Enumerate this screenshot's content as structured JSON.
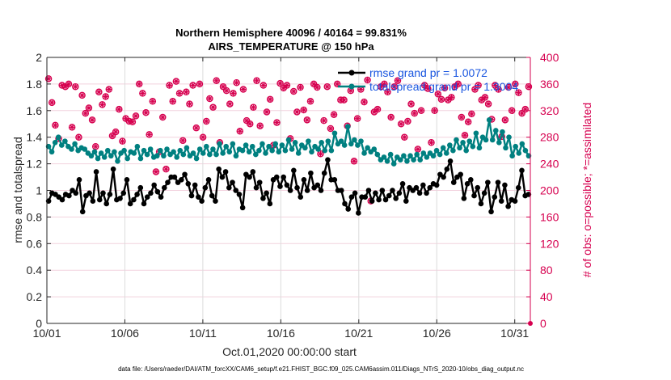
{
  "chart_data": {
    "type": "line",
    "title": "Northern Hemisphere 40096 / 40164 = 99.831%",
    "subtitle": "AIRS_TEMPERATURE @ 150 hPa",
    "xlabel": "Oct.01,2020 00:00:00 start",
    "ylabel": "rmse and totalspread",
    "ylabel_right": "# of obs: o=possible; *=assimilated",
    "footer": "data file: /Users/raeder/DAI/ATM_forcXX/CAM6_setup/f.e21.FHIST_BGC.f09_025.CAM6assim.011/Diags_NTrS_2020-10/obs_diag_output.nc",
    "xlim_days": [
      0,
      31
    ],
    "x_ticks": [
      {
        "day": 0,
        "label": "10/01"
      },
      {
        "day": 5,
        "label": "10/06"
      },
      {
        "day": 10,
        "label": "10/11"
      },
      {
        "day": 15,
        "label": "10/16"
      },
      {
        "day": 20,
        "label": "10/21"
      },
      {
        "day": 25,
        "label": "10/26"
      },
      {
        "day": 30,
        "label": "10/31"
      }
    ],
    "ylim": [
      0,
      2
    ],
    "y_ticks": [
      "0",
      "0.2",
      "0.4",
      "0.6",
      "0.8",
      "1",
      "1.2",
      "1.4",
      "1.6",
      "1.8",
      "2"
    ],
    "ylim_right": [
      0,
      400
    ],
    "y_ticks_right": [
      "0",
      "40",
      "80",
      "120",
      "160",
      "200",
      "240",
      "280",
      "320",
      "360",
      "400"
    ],
    "grid": true,
    "legend_position": "top-right",
    "colors": {
      "rmse": "#000000",
      "totalspread": "#008080",
      "obs": "#d6004f",
      "legend_text": "#1a56e0",
      "right_axis": "#d6004f"
    },
    "series": [
      {
        "name": "rmse grand pr = 1.0072",
        "axis": "left",
        "values": [
          0.92,
          0.98,
          0.97,
          0.95,
          0.93,
          0.97,
          0.96,
          1.0,
          0.98,
          1.08,
          0.84,
          0.96,
          0.98,
          0.92,
          1.14,
          0.93,
          0.98,
          0.9,
          0.97,
          1.16,
          0.93,
          0.94,
          0.98,
          1.08,
          0.9,
          0.93,
          0.97,
          1.02,
          0.9,
          0.95,
          0.98,
          1.04,
          0.99,
          0.95,
          1.02,
          1.06,
          1.1,
          1.1,
          1.06,
          1.08,
          1.12,
          1.05,
          0.96,
          1.04,
          0.95,
          0.92,
          1.02,
          1.08,
          0.96,
          0.92,
          1.16,
          1.1,
          1.14,
          1.02,
          1.06,
          1.0,
          0.97,
          0.87,
          1.12,
          1.1,
          1.14,
          1.02,
          1.06,
          0.94,
          0.98,
          0.9,
          1.08,
          1.1,
          1.03,
          1.1,
          1.04,
          1.0,
          1.15,
          1.02,
          0.95,
          1.08,
          1.0,
          1.13,
          1.02,
          1.04,
          1.0,
          1.13,
          1.23,
          1.08,
          1.08,
          1.0,
          1.0,
          0.9,
          0.86,
          0.95,
          0.98,
          0.83,
          0.95,
          0.95,
          1.0,
          0.92,
          0.98,
          0.93,
          1.0,
          0.93,
          0.96,
          1.0,
          0.94,
          0.98,
          1.05,
          0.92,
          1.02,
          1.0,
          1.02,
          0.98,
          1.04,
          0.98,
          1.02,
          1.05,
          1.04,
          1.12,
          1.1,
          1.16,
          1.22,
          1.06,
          1.1,
          1.12,
          0.94,
          1.05,
          1.08,
          0.96,
          1.02,
          0.9,
          0.98,
          1.06,
          0.84,
          0.95,
          1.06,
          0.92,
          1.04,
          0.88,
          0.93,
          0.92,
          1.02,
          1.15,
          0.96,
          0.97
        ]
      },
      {
        "name": "totalspread grand pr = 1.3004",
        "axis": "left",
        "values": [
          1.33,
          1.29,
          1.36,
          1.4,
          1.34,
          1.37,
          1.33,
          1.31,
          1.35,
          1.3,
          1.32,
          1.31,
          1.28,
          1.26,
          1.29,
          1.24,
          1.28,
          1.25,
          1.3,
          1.26,
          1.29,
          1.22,
          1.28,
          1.3,
          1.24,
          1.29,
          1.28,
          1.33,
          1.24,
          1.3,
          1.27,
          1.31,
          1.25,
          1.26,
          1.3,
          1.26,
          1.31,
          1.27,
          1.29,
          1.25,
          1.3,
          1.27,
          1.32,
          1.26,
          1.28,
          1.24,
          1.31,
          1.28,
          1.33,
          1.27,
          1.31,
          1.27,
          1.35,
          1.28,
          1.33,
          1.29,
          1.35,
          1.26,
          1.31,
          1.3,
          1.34,
          1.29,
          1.33,
          1.27,
          1.3,
          1.35,
          1.28,
          1.33,
          1.3,
          1.35,
          1.29,
          1.34,
          1.3,
          1.38,
          1.31,
          1.36,
          1.28,
          1.34,
          1.32,
          1.37,
          1.29,
          1.33,
          1.31,
          1.36,
          1.3,
          1.37,
          1.3,
          1.43,
          1.35,
          1.37,
          1.34,
          1.48,
          1.35,
          1.38,
          1.34,
          1.37,
          1.28,
          1.32,
          1.29,
          1.31,
          1.27,
          1.23,
          1.25,
          1.22,
          1.27,
          1.2,
          1.25,
          1.23,
          1.26,
          1.22,
          1.26,
          1.23,
          1.27,
          1.23,
          1.28,
          1.25,
          1.28,
          1.26,
          1.3,
          1.27,
          1.32,
          1.28,
          1.34,
          1.3,
          1.38,
          1.32,
          1.36,
          1.3,
          1.37,
          1.33,
          1.43,
          1.32,
          1.4,
          1.38,
          1.53,
          1.38,
          1.45,
          1.36,
          1.44,
          1.32,
          1.4,
          1.26,
          1.33,
          1.28,
          1.35,
          1.3,
          1.26
        ]
      },
      {
        "name": "# of obs (possible/assimilated)",
        "axis": "right",
        "values": [
          368,
          332,
          298,
          278,
          358,
          356,
          360,
          295,
          356,
          280,
          343,
          316,
          324,
          306,
          266,
          348,
          329,
          341,
          352,
          282,
          288,
          322,
          274,
          308,
          304,
          303,
          312,
          360,
          346,
          317,
          284,
          334,
          228,
          258,
          310,
          232,
          358,
          334,
          364,
          346,
          275,
          348,
          330,
          358,
          294,
          360,
          280,
          304,
          338,
          325,
          365,
          272,
          356,
          350,
          330,
          346,
          362,
          289,
          352,
          305,
          300,
          325,
          365,
          297,
          358,
          318,
          337,
          268,
          302,
          361,
          354,
          358,
          278,
          349,
          318,
          355,
          321,
          306,
          334,
          360,
          355,
          255,
          305,
          356,
          293,
          314,
          360,
          336,
          336,
          297,
          350,
          244,
          308,
          352,
          333,
          366,
          184,
          318,
          322,
          356,
          360,
          348,
          310,
          356,
          365,
          300,
          280,
          304,
          330,
          316,
          262,
          320,
          358,
          353,
          272,
          320,
          345,
          337,
          354,
          336,
          340,
          356,
          360,
          310,
          283,
          303,
          315,
          352,
          358,
          336,
          340,
          330,
          307,
          358,
          352,
          281,
          306,
          355,
          320,
          360,
          347,
          316,
          322,
          356
        ]
      }
    ],
    "legend": [
      {
        "label": "rmse grand pr = 1.0072",
        "color": "#000000"
      },
      {
        "label": "totalspread grand pr = 1.3004",
        "color": "#008080"
      }
    ]
  }
}
